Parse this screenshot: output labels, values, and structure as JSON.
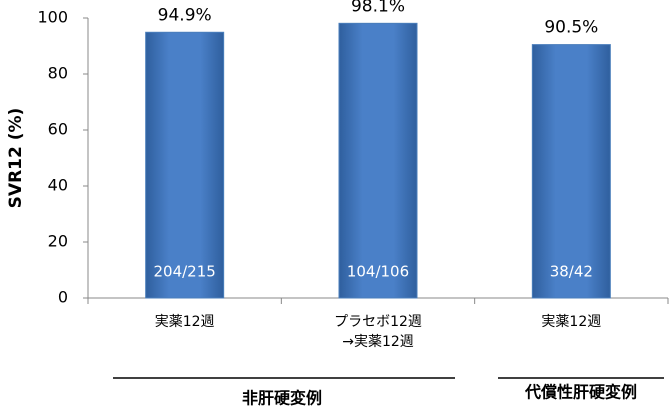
{
  "chart_data": {
    "type": "bar",
    "y_label": "SVR12 (%)",
    "categories": [
      "実薬12週",
      "プラセボ12週\n→実薬12週",
      "実薬12週"
    ],
    "values": [
      94.9,
      98.1,
      90.5
    ],
    "value_labels": [
      "94.9%",
      "98.1%",
      "90.5%"
    ],
    "counts": [
      "204/215",
      "104/106",
      "38/42"
    ],
    "groups": [
      "非肝硬変例",
      "代償性肝硬変例"
    ],
    "color": "#4a7ebb",
    "ylim": [
      0,
      100
    ],
    "yticks": [
      0,
      20,
      40,
      60,
      80,
      100
    ],
    "grid": false
  }
}
